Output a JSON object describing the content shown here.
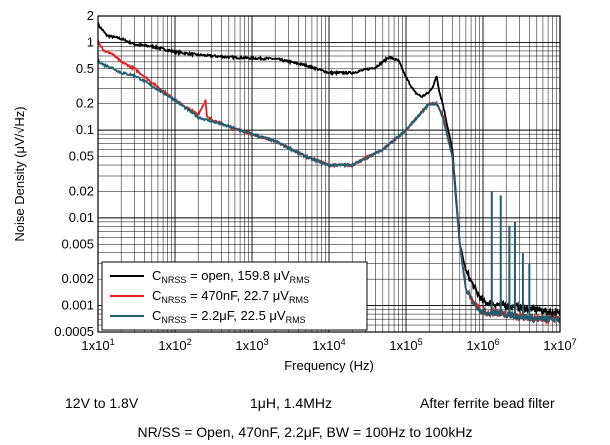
{
  "chart_data": {
    "type": "line",
    "title": "",
    "xlabel": "Frequency (Hz)",
    "ylabel": "Noise Density (μV/√Hz)",
    "xscale": "log",
    "yscale": "log",
    "xlim": [
      10,
      10000000
    ],
    "ylim": [
      0.0005,
      2
    ],
    "grid": true,
    "legend_position": "bottom-left",
    "x_ticks": [
      {
        "value": 10,
        "base": "1x10",
        "exp": "1"
      },
      {
        "value": 100,
        "base": "1x10",
        "exp": "2"
      },
      {
        "value": 1000,
        "base": "1x10",
        "exp": "3"
      },
      {
        "value": 10000,
        "base": "1x10",
        "exp": "4"
      },
      {
        "value": 100000,
        "base": "1x10",
        "exp": "5"
      },
      {
        "value": 1000000,
        "base": "1x10",
        "exp": "6"
      },
      {
        "value": 10000000,
        "base": "1x10",
        "exp": "7"
      }
    ],
    "y_ticks": [
      {
        "value": 2,
        "label": "2"
      },
      {
        "value": 1,
        "label": "1"
      },
      {
        "value": 0.5,
        "label": "0.5"
      },
      {
        "value": 0.2,
        "label": "0.2"
      },
      {
        "value": 0.1,
        "label": "0.1"
      },
      {
        "value": 0.05,
        "label": "0.05"
      },
      {
        "value": 0.02,
        "label": "0.02"
      },
      {
        "value": 0.01,
        "label": "0.01"
      },
      {
        "value": 0.005,
        "label": "0.005"
      },
      {
        "value": 0.002,
        "label": "0.002"
      },
      {
        "value": 0.001,
        "label": "0.001"
      },
      {
        "value": 0.0005,
        "label": "0.0005"
      }
    ],
    "series": [
      {
        "name": "CNRSS = open, 159.8 μVRMS",
        "legend": {
          "prefix": "C",
          "sub": "NRSS",
          "mid": " = open, 159.8 μV",
          "sub2": "RMS"
        },
        "color": "#000000",
        "points": [
          [
            10,
            1.6
          ],
          [
            13,
            1.2
          ],
          [
            20,
            1.1
          ],
          [
            30,
            0.95
          ],
          [
            50,
            0.9
          ],
          [
            100,
            0.78
          ],
          [
            200,
            0.72
          ],
          [
            500,
            0.68
          ],
          [
            1000,
            0.66
          ],
          [
            2000,
            0.65
          ],
          [
            5000,
            0.55
          ],
          [
            10000,
            0.45
          ],
          [
            20000,
            0.45
          ],
          [
            40000,
            0.52
          ],
          [
            60000,
            0.68
          ],
          [
            80000,
            0.62
          ],
          [
            100000,
            0.4
          ],
          [
            130000,
            0.27
          ],
          [
            160000,
            0.24
          ],
          [
            200000,
            0.27
          ],
          [
            230000,
            0.33
          ],
          [
            250000,
            0.42
          ],
          [
            270000,
            0.28
          ],
          [
            300000,
            0.2
          ],
          [
            400000,
            0.06
          ],
          [
            500000,
            0.005
          ],
          [
            600000,
            0.0025
          ],
          [
            800000,
            0.0015
          ],
          [
            1000000,
            0.0011
          ],
          [
            2000000,
            0.001
          ],
          [
            5000000,
            0.0009
          ],
          [
            10000000,
            0.0008
          ]
        ]
      },
      {
        "name": "CNRSS = 470nF, 22.7 μVRMS",
        "legend": {
          "prefix": "C",
          "sub": "NRSS",
          "mid": " = 470nF, 22.7 μV",
          "sub2": "RMS"
        },
        "color": "#e02020",
        "points": [
          [
            10,
            1.05
          ],
          [
            12,
            0.8
          ],
          [
            15,
            0.75
          ],
          [
            20,
            0.6
          ],
          [
            30,
            0.5
          ],
          [
            50,
            0.35
          ],
          [
            100,
            0.22
          ],
          [
            200,
            0.15
          ],
          [
            250,
            0.22
          ],
          [
            260,
            0.14
          ],
          [
            500,
            0.11
          ],
          [
            1000,
            0.09
          ],
          [
            2000,
            0.075
          ],
          [
            5000,
            0.05
          ],
          [
            10000,
            0.04
          ],
          [
            20000,
            0.04
          ],
          [
            50000,
            0.06
          ],
          [
            100000,
            0.1
          ],
          [
            150000,
            0.15
          ],
          [
            200000,
            0.2
          ],
          [
            250000,
            0.2
          ],
          [
            300000,
            0.15
          ],
          [
            400000,
            0.05
          ],
          [
            500000,
            0.005
          ],
          [
            600000,
            0.0015
          ],
          [
            800000,
            0.001
          ],
          [
            1000000,
            0.00085
          ],
          [
            2000000,
            0.0008
          ],
          [
            5000000,
            0.0007
          ],
          [
            10000000,
            0.0007
          ]
        ]
      },
      {
        "name": "CNRSS = 2.2μF, 22.5 μVRMS",
        "legend": {
          "prefix": "C",
          "sub": "NRSS",
          "mid": " = 2.2μF, 22.5 μV",
          "sub2": "RMS"
        },
        "color": "#1f5f6f",
        "points": [
          [
            10,
            0.62
          ],
          [
            12,
            0.55
          ],
          [
            15,
            0.52
          ],
          [
            20,
            0.45
          ],
          [
            30,
            0.42
          ],
          [
            50,
            0.32
          ],
          [
            100,
            0.22
          ],
          [
            200,
            0.14
          ],
          [
            500,
            0.11
          ],
          [
            1000,
            0.09
          ],
          [
            2000,
            0.075
          ],
          [
            5000,
            0.05
          ],
          [
            10000,
            0.04
          ],
          [
            20000,
            0.04
          ],
          [
            50000,
            0.06
          ],
          [
            100000,
            0.1
          ],
          [
            150000,
            0.15
          ],
          [
            200000,
            0.2
          ],
          [
            250000,
            0.2
          ],
          [
            300000,
            0.14
          ],
          [
            400000,
            0.05
          ],
          [
            500000,
            0.005
          ],
          [
            600000,
            0.0015
          ],
          [
            800000,
            0.001
          ],
          [
            1000000,
            0.00085
          ],
          [
            2000000,
            0.0008
          ],
          [
            5000000,
            0.0007
          ],
          [
            10000000,
            0.0007
          ]
        ],
        "spikes": [
          [
            1300000,
            0.02
          ],
          [
            1700000,
            0.018
          ],
          [
            2200000,
            0.008
          ],
          [
            2600000,
            0.009
          ],
          [
            3300000,
            0.004
          ],
          [
            4000000,
            0.003
          ]
        ]
      }
    ]
  },
  "captions": {
    "conditions": [
      "12V to 1.8V",
      "1μH, 1.4MHz",
      "After ferrite bead filter"
    ],
    "footer": "NR/SS = Open, 470nF, 2.2μF, BW = 100Hz to 100kHz"
  }
}
